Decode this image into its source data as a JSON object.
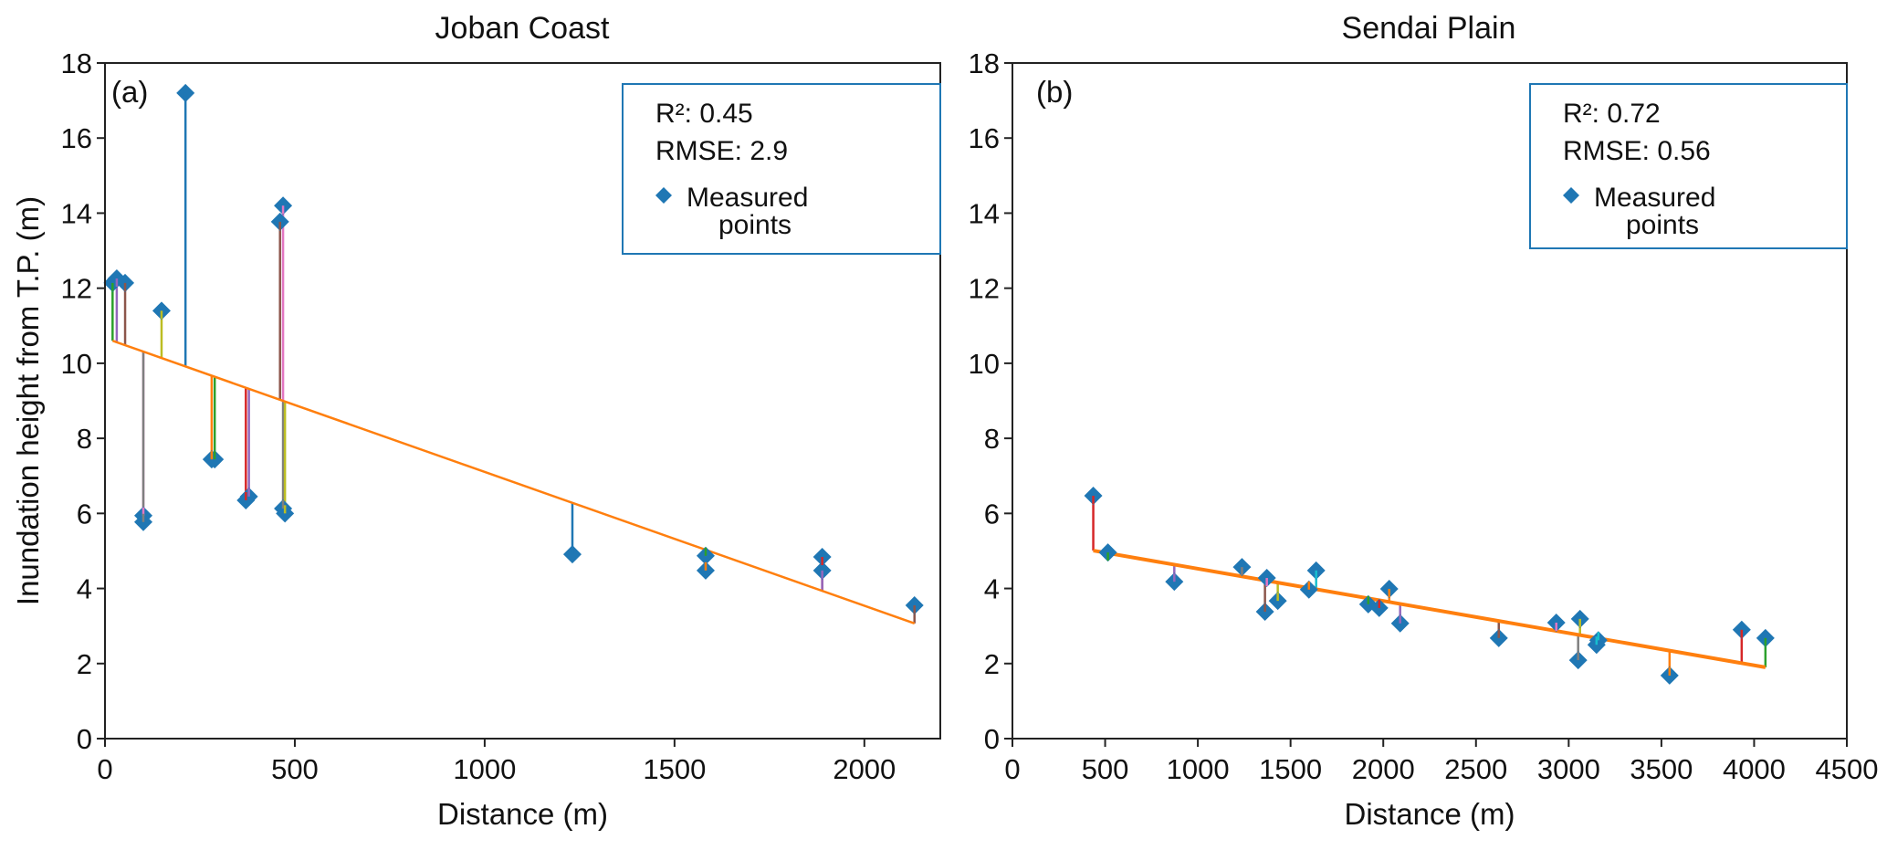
{
  "figure": {
    "ylabel": "Inundation height from T.P. (m)"
  },
  "chart_data": [
    {
      "type": "scatter",
      "title": "Joban Coast",
      "panel_label": "(a)",
      "xlabel": "Distance (m)",
      "ylabel": "Inundation height from T.P. (m)",
      "xlim": [
        0,
        2200
      ],
      "ylim": [
        0,
        18
      ],
      "xticks": [
        0,
        500,
        1000,
        1500,
        2000
      ],
      "yticks": [
        0,
        2,
        4,
        6,
        8,
        10,
        12,
        14,
        16,
        18
      ],
      "grid": false,
      "legend": {
        "placement": "top-right",
        "stats": [
          "R²: 0.45",
          "RMSE: 2.9"
        ],
        "entries": [
          {
            "label_line1": "Measured",
            "label_line2": "points",
            "marker": "diamond",
            "color": "#1f77b4"
          }
        ]
      },
      "r2": 0.45,
      "rmse": 2.9,
      "regression": {
        "x": [
          20,
          2132
        ],
        "y": [
          10.6,
          3.07
        ],
        "color": "#ff7f0e"
      },
      "series": [
        {
          "name": "Measured points",
          "marker": "diamond",
          "color": "#1f77b4",
          "x": [
            20,
            31,
            53,
            101,
            101,
            149,
            212,
            281,
            289,
            371,
            379,
            461,
            469,
            469,
            474,
            1231,
            1582,
            1582,
            1889,
            1889,
            2132
          ],
          "y": [
            12.14,
            12.26,
            12.14,
            5.94,
            5.77,
            11.4,
            17.2,
            7.44,
            7.44,
            6.35,
            6.45,
            13.77,
            14.2,
            6.13,
            6.0,
            4.91,
            4.87,
            4.48,
            4.84,
            4.48,
            3.55
          ]
        }
      ],
      "residual_colors": [
        "#2ca02c",
        "#9467bd",
        "#8c564b",
        "#e377c2",
        "#7f7f7f",
        "#bcbd22",
        "#1f77b4",
        "#ff7f0e",
        "#2ca02c",
        "#d62728",
        "#9467bd",
        "#8c564b",
        "#e377c2",
        "#7f7f7f",
        "#bcbd22",
        "#1f77b4",
        "#2ca02c",
        "#ff7f0e",
        "#d62728",
        "#9467bd",
        "#8c564b"
      ]
    },
    {
      "type": "scatter",
      "title": "Sendai Plain",
      "panel_label": "(b)",
      "xlabel": "Distance (m)",
      "ylabel": "",
      "xlim": [
        0,
        4500
      ],
      "ylim": [
        0,
        18
      ],
      "xticks": [
        0,
        500,
        1000,
        1500,
        2000,
        2500,
        3000,
        3500,
        4000,
        4500
      ],
      "yticks": [
        0,
        2,
        4,
        6,
        8,
        10,
        12,
        14,
        16,
        18
      ],
      "grid": false,
      "legend": {
        "placement": "top-right",
        "stats": [
          "R²: 0.72",
          "RMSE: 0.56"
        ],
        "entries": [
          {
            "label_line1": "Measured",
            "label_line2": "points",
            "marker": "diamond",
            "color": "#1f77b4"
          }
        ]
      },
      "r2": 0.72,
      "rmse": 0.56,
      "regression": {
        "x": [
          436,
          4061
        ],
        "y": [
          5.01,
          1.9
        ],
        "color": "#ff7f0e"
      },
      "series": [
        {
          "name": "Measured points",
          "marker": "diamond",
          "color": "#1f77b4",
          "x": [
            436,
            515,
            873,
            1238,
            1362,
            1372,
            1431,
            1599,
            1638,
            1919,
            1978,
            2032,
            2091,
            2623,
            2933,
            3051,
            3061,
            3150,
            3160,
            3544,
            3933,
            4061
          ],
          "y": [
            6.47,
            4.96,
            4.18,
            4.57,
            3.38,
            4.28,
            3.67,
            3.97,
            4.48,
            3.58,
            3.48,
            3.99,
            3.07,
            2.68,
            3.09,
            2.09,
            3.19,
            2.5,
            2.62,
            1.68,
            2.9,
            2.68
          ]
        }
      ],
      "residual_colors": [
        "#d62728",
        "#2ca02c",
        "#9467bd",
        "#7f7f7f",
        "#8c564b",
        "#e377c2",
        "#bcbd22",
        "#ff7f0e",
        "#17becf",
        "#2ca02c",
        "#d62728",
        "#ff7f0e",
        "#9467bd",
        "#8c564b",
        "#e377c2",
        "#7f7f7f",
        "#bcbd22",
        "#17becf",
        "#17becf",
        "#ff7f0e",
        "#d62728",
        "#2ca02c"
      ]
    }
  ]
}
